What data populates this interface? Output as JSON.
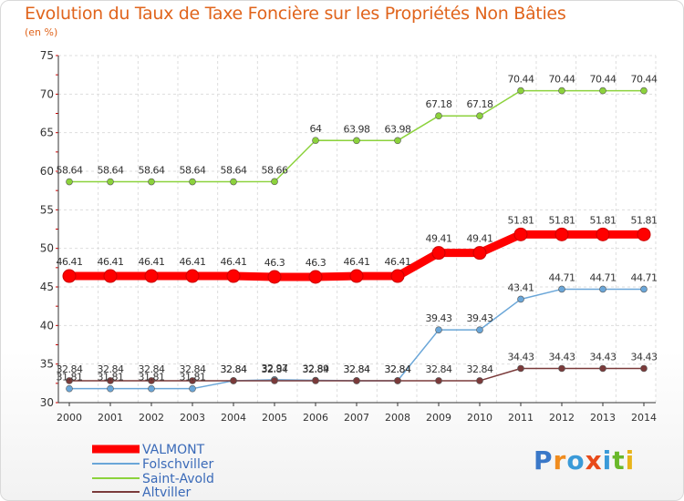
{
  "title": "Evolution du Taux de Taxe Foncière sur les Propriétés Non Bâties",
  "unit": "(en %)",
  "logo": {
    "text": "Proxiti",
    "colors": [
      "#3a78c8",
      "#f08c1e",
      "#3a9ad8",
      "#e84a1a",
      "#3a9ad8",
      "#6ab82a",
      "#e8b41a"
    ]
  },
  "chart_data": {
    "type": "line",
    "title": "Evolution du Taux de Taxe Foncière sur les Propriétés Non Bâties",
    "ylabel": "(en %)",
    "xlabel": "",
    "ylim": [
      30,
      75
    ],
    "yticks": [
      30,
      35,
      40,
      45,
      50,
      55,
      60,
      65,
      70,
      75
    ],
    "categories": [
      "2000",
      "2001",
      "2002",
      "2003",
      "2004",
      "2005",
      "2006",
      "2007",
      "2008",
      "2009",
      "2010",
      "2011",
      "2012",
      "2013",
      "2014"
    ],
    "grid": true,
    "series": [
      {
        "name": "VALMONT",
        "color": "#ff0000",
        "values": [
          46.41,
          46.41,
          46.41,
          46.41,
          46.41,
          46.3,
          46.3,
          46.41,
          46.41,
          49.41,
          49.41,
          51.81,
          51.81,
          51.81,
          51.81
        ],
        "labels": [
          "46.41",
          "46.41",
          "46.41",
          "46.41",
          "46.41",
          "46.3",
          "46.3",
          "46.41",
          "46.41",
          "49.41",
          "49.41",
          "51.81",
          "51.81",
          "51.81",
          "51.81"
        ]
      },
      {
        "name": "Folschviller",
        "color": "#6aa6d8",
        "values": [
          31.81,
          31.81,
          31.81,
          31.81,
          32.84,
          32.97,
          32.89,
          32.84,
          32.84,
          39.43,
          39.43,
          43.41,
          44.71,
          44.71,
          44.71
        ],
        "labels": [
          "31.81",
          "31.81",
          "31.81",
          "31.81",
          "32.84",
          "32.97",
          "32.89",
          "32.84",
          "32.84",
          "39.43",
          "39.43",
          "43.41",
          "44.71",
          "44.71",
          "44.71"
        ]
      },
      {
        "name": "Saint-Avold",
        "color": "#8cd23c",
        "values": [
          58.64,
          58.64,
          58.64,
          58.64,
          58.64,
          58.66,
          64,
          63.98,
          63.98,
          67.18,
          67.18,
          70.44,
          70.44,
          70.44,
          70.44
        ],
        "labels": [
          "58.64",
          "58.64",
          "58.64",
          "58.64",
          "58.64",
          "58.66",
          "64",
          "63.98",
          "63.98",
          "67.18",
          "67.18",
          "70.44",
          "70.44",
          "70.44",
          "70.44"
        ]
      },
      {
        "name": "Altviller",
        "color": "#7a3a3a",
        "values": [
          32.84,
          32.84,
          32.84,
          32.84,
          32.84,
          32.84,
          32.84,
          32.84,
          32.84,
          32.84,
          32.84,
          34.43,
          34.43,
          34.43,
          34.43
        ],
        "labels": [
          "32.84",
          "32.84",
          "32.84",
          "32.84",
          "32.84",
          "32.84",
          "32.84",
          "32.84",
          "32.84",
          "32.84",
          "32.84",
          "34.43",
          "34.43",
          "34.43",
          "34.43"
        ]
      }
    ]
  }
}
